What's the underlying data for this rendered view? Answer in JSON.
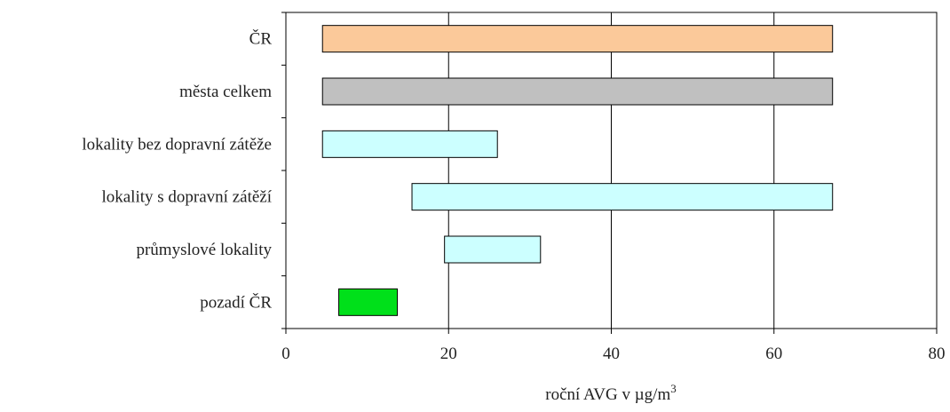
{
  "chart_data": {
    "type": "bar",
    "orientation": "horizontal",
    "subtype": "floating-range",
    "title": "",
    "xlabel_prefix": "roční AVG v µg/m",
    "xlabel_superscript": "3",
    "xlim": [
      0,
      80
    ],
    "x_ticks": [
      "0",
      "20",
      "40",
      "60",
      "80"
    ],
    "grid": "vertical",
    "legend": "none",
    "categories": [
      "ČR",
      "města celkem",
      "lokality bez dopravní zátěže",
      "lokality s dopravní zátěží",
      "průmyslové lokality",
      "pozadí ČR"
    ],
    "ranges": [
      [
        4.5,
        67.2
      ],
      [
        4.5,
        67.2
      ],
      [
        4.5,
        26.0
      ],
      [
        15.5,
        67.2
      ],
      [
        19.5,
        31.3
      ],
      [
        6.5,
        13.7
      ]
    ],
    "colors": [
      "#FBC99A",
      "#C0C0C0",
      "#CCFFFF",
      "#CCFFFF",
      "#CCFFFF",
      "#00E01A"
    ]
  }
}
